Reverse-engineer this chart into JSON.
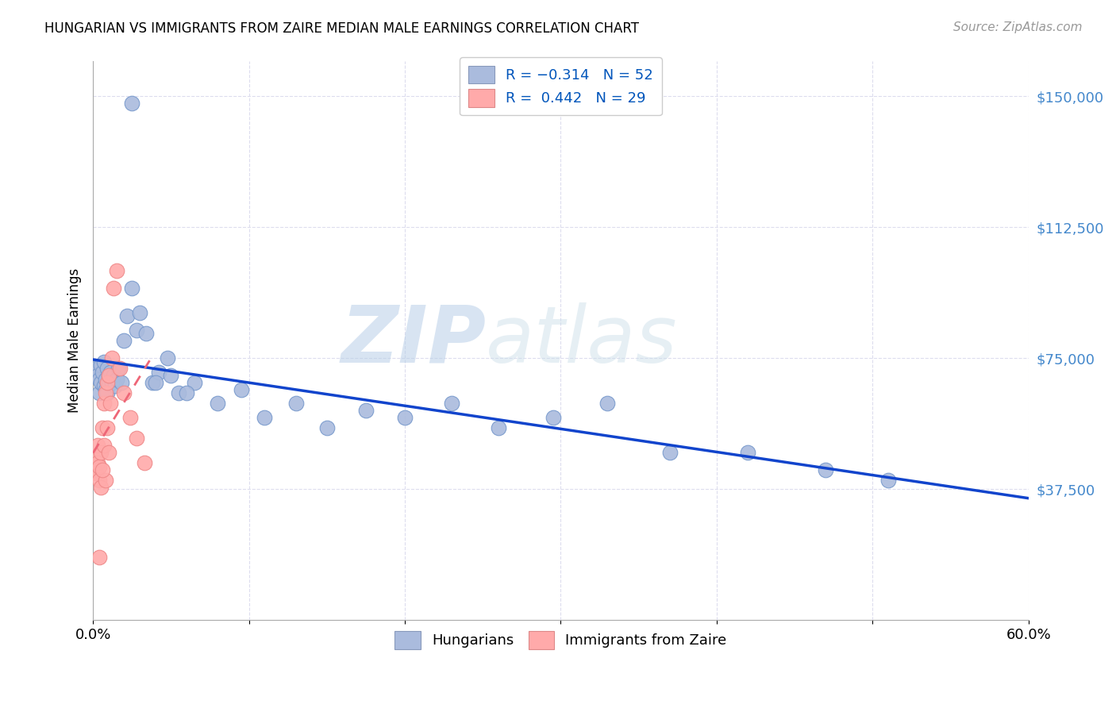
{
  "title": "HUNGARIAN VS IMMIGRANTS FROM ZAIRE MEDIAN MALE EARNINGS CORRELATION CHART",
  "source": "Source: ZipAtlas.com",
  "ylabel": "Median Male Earnings",
  "xlim": [
    0.0,
    0.6
  ],
  "ylim": [
    0,
    160000
  ],
  "yticks": [
    37500,
    75000,
    112500,
    150000
  ],
  "ytick_labels": [
    "$37,500",
    "$75,000",
    "$112,500",
    "$150,000"
  ],
  "xticks": [
    0.0,
    0.1,
    0.2,
    0.3,
    0.4,
    0.5,
    0.6
  ],
  "xtick_labels": [
    "0.0%",
    "",
    "",
    "",
    "",
    "",
    "60.0%"
  ],
  "watermark": "ZIPatlas",
  "blue_scatter_color": "#aabbdd",
  "pink_scatter_color": "#ffaaaa",
  "blue_edge_color": "#7799cc",
  "pink_edge_color": "#ee8888",
  "trend_blue": "#1144cc",
  "trend_pink_color": "#ee6677",
  "background_color": "#ffffff",
  "grid_color": "#ddddee",
  "hun_x": [
    0.002,
    0.003,
    0.004,
    0.004,
    0.005,
    0.005,
    0.006,
    0.007,
    0.007,
    0.008,
    0.008,
    0.009,
    0.009,
    0.01,
    0.01,
    0.011,
    0.012,
    0.013,
    0.014,
    0.015,
    0.016,
    0.018,
    0.02,
    0.022,
    0.025,
    0.028,
    0.03,
    0.034,
    0.038,
    0.042,
    0.048,
    0.055,
    0.065,
    0.08,
    0.095,
    0.11,
    0.13,
    0.15,
    0.175,
    0.2,
    0.23,
    0.26,
    0.295,
    0.33,
    0.37,
    0.42,
    0.47,
    0.51,
    0.025,
    0.05,
    0.04,
    0.06
  ],
  "hun_y": [
    72000,
    70000,
    69000,
    65000,
    68000,
    73000,
    71000,
    67000,
    74000,
    69000,
    66000,
    72000,
    65000,
    70000,
    68000,
    71000,
    68000,
    70000,
    67000,
    69000,
    72000,
    68000,
    80000,
    87000,
    95000,
    83000,
    88000,
    82000,
    68000,
    71000,
    75000,
    65000,
    68000,
    62000,
    66000,
    58000,
    62000,
    55000,
    60000,
    58000,
    62000,
    55000,
    58000,
    62000,
    48000,
    48000,
    43000,
    40000,
    148000,
    70000,
    68000,
    65000
  ],
  "zaire_x": [
    0.001,
    0.002,
    0.002,
    0.003,
    0.003,
    0.004,
    0.004,
    0.005,
    0.005,
    0.006,
    0.007,
    0.007,
    0.008,
    0.009,
    0.01,
    0.011,
    0.012,
    0.013,
    0.015,
    0.017,
    0.02,
    0.024,
    0.028,
    0.033,
    0.008,
    0.006,
    0.004,
    0.009,
    0.01
  ],
  "zaire_y": [
    43000,
    47000,
    42000,
    50000,
    45000,
    40000,
    44000,
    48000,
    38000,
    55000,
    50000,
    62000,
    65000,
    68000,
    70000,
    62000,
    75000,
    95000,
    100000,
    72000,
    65000,
    58000,
    52000,
    45000,
    40000,
    43000,
    18000,
    55000,
    48000
  ]
}
